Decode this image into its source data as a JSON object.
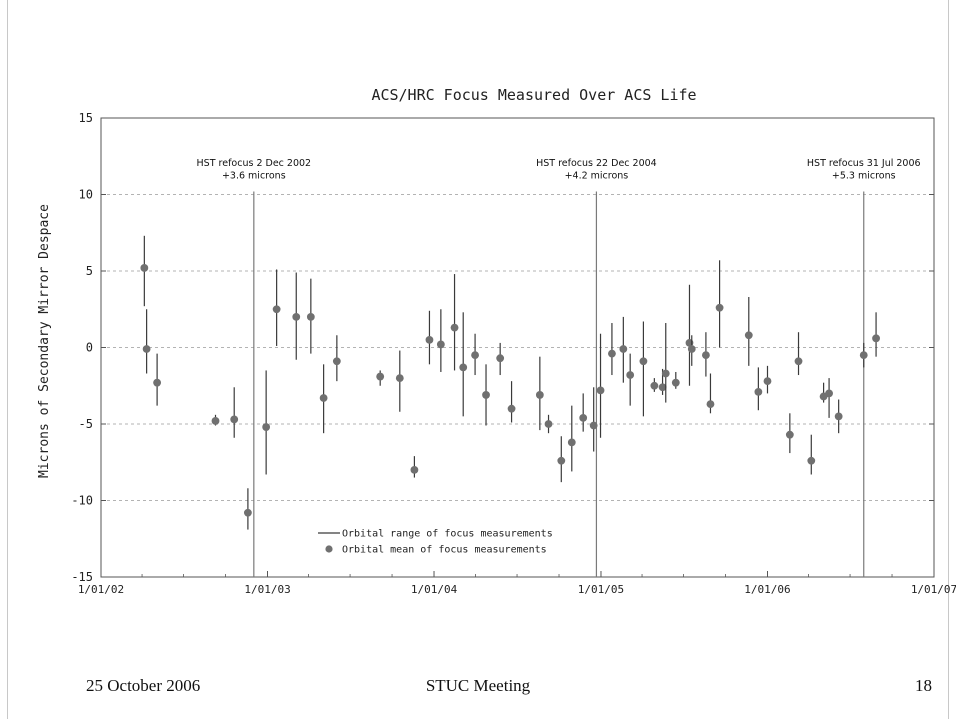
{
  "footer": {
    "date": "25 October 2006",
    "meeting": "STUC Meeting",
    "page": "18"
  },
  "colors": {
    "marker": "#707070",
    "errorbar": "#3a3a3a",
    "grid": "#9a9a9a",
    "axis": "#555555",
    "refocus_line": "#7a7a7a"
  },
  "chart_data": {
    "type": "scatter",
    "title": "ACS/HRC Focus Measured Over ACS Life",
    "xlabel": "",
    "ylabel": "Microns of Secondary Mirror Despace",
    "xlim": [
      "2002-01-01",
      "2007-01-01"
    ],
    "ylim": [
      -15,
      15
    ],
    "x_ticks": [
      "1/01/02",
      "1/01/03",
      "1/01/04",
      "1/01/05",
      "1/01/06",
      "1/01/07"
    ],
    "x_tick_dates": [
      "2002-01-01",
      "2003-01-01",
      "2004-01-01",
      "2005-01-01",
      "2006-01-01",
      "2007-01-01"
    ],
    "y_ticks": [
      15,
      10,
      5,
      0,
      -5,
      -10,
      -15
    ],
    "grid": "horizontal dashed",
    "legend": {
      "placement": "lower-center",
      "entries": [
        "Orbital range of focus measurements",
        "Orbital mean of focus measurements"
      ]
    },
    "refocus_events": [
      {
        "date": "2002-12-02",
        "label_line1": "HST refocus 2 Dec 2002",
        "label_line2": "+3.6 microns"
      },
      {
        "date": "2004-12-22",
        "label_line1": "HST refocus 22 Dec 2004",
        "label_line2": "+4.2 microns"
      },
      {
        "date": "2006-07-31",
        "label_line1": "HST refocus 31 Jul 2006",
        "label_line2": "+5.3 microns"
      }
    ],
    "series": [
      {
        "points": [
          {
            "date": "2002-04-06",
            "mean": 5.2,
            "low": 2.7,
            "high": 7.3
          },
          {
            "date": "2002-04-11",
            "mean": -0.1,
            "low": -1.7,
            "high": 2.5
          },
          {
            "date": "2002-05-04",
            "mean": -2.3,
            "low": -3.8,
            "high": -0.4
          },
          {
            "date": "2002-09-09",
            "mean": -4.8,
            "low": -5.1,
            "high": -4.4
          },
          {
            "date": "2002-10-20",
            "mean": -4.7,
            "low": -5.9,
            "high": -2.6
          },
          {
            "date": "2002-11-19",
            "mean": -10.8,
            "low": -11.9,
            "high": -9.2
          },
          {
            "date": "2002-12-29",
            "mean": -5.2,
            "low": -8.3,
            "high": -1.5
          },
          {
            "date": "2003-01-21",
            "mean": 2.5,
            "low": 0.1,
            "high": 5.1
          },
          {
            "date": "2003-03-05",
            "mean": 2.0,
            "low": -0.8,
            "high": 4.9
          },
          {
            "date": "2003-04-06",
            "mean": 2.0,
            "low": -0.4,
            "high": 4.5
          },
          {
            "date": "2003-05-04",
            "mean": -3.3,
            "low": -5.6,
            "high": -1.1
          },
          {
            "date": "2003-06-02",
            "mean": -0.9,
            "low": -2.2,
            "high": 0.8
          },
          {
            "date": "2003-09-05",
            "mean": -1.9,
            "low": -2.5,
            "high": -1.5
          },
          {
            "date": "2003-10-18",
            "mean": -2.0,
            "low": -4.2,
            "high": -0.2
          },
          {
            "date": "2003-11-19",
            "mean": -8.0,
            "low": -8.5,
            "high": -7.1
          },
          {
            "date": "2003-12-22",
            "mean": 0.5,
            "low": -1.1,
            "high": 2.4
          },
          {
            "date": "2004-01-16",
            "mean": 0.2,
            "low": -1.6,
            "high": 2.5
          },
          {
            "date": "2004-02-15",
            "mean": 1.3,
            "low": -1.5,
            "high": 4.8
          },
          {
            "date": "2004-03-05",
            "mean": -1.3,
            "low": -4.5,
            "high": 2.3
          },
          {
            "date": "2004-03-31",
            "mean": -0.5,
            "low": -1.8,
            "high": 0.9
          },
          {
            "date": "2004-04-24",
            "mean": -3.1,
            "low": -5.1,
            "high": -1.1
          },
          {
            "date": "2004-05-25",
            "mean": -0.7,
            "low": -1.8,
            "high": 0.3
          },
          {
            "date": "2004-06-19",
            "mean": -4.0,
            "low": -4.9,
            "high": -2.2
          },
          {
            "date": "2004-08-20",
            "mean": -3.1,
            "low": -5.4,
            "high": -0.6
          },
          {
            "date": "2004-09-08",
            "mean": -5.0,
            "low": -5.6,
            "high": -4.4
          },
          {
            "date": "2004-10-06",
            "mean": -7.4,
            "low": -8.8,
            "high": -5.8
          },
          {
            "date": "2004-10-29",
            "mean": -6.2,
            "low": -8.1,
            "high": -3.8
          },
          {
            "date": "2004-11-23",
            "mean": -4.6,
            "low": -5.5,
            "high": -3.0
          },
          {
            "date": "2004-12-16",
            "mean": -5.1,
            "low": -6.8,
            "high": -2.6
          },
          {
            "date": "2004-12-31",
            "mean": -2.8,
            "low": -5.9,
            "high": 0.9
          },
          {
            "date": "2005-01-25",
            "mean": -0.4,
            "low": -1.8,
            "high": 1.6
          },
          {
            "date": "2005-02-19",
            "mean": -0.1,
            "low": -2.3,
            "high": 2.0
          },
          {
            "date": "2005-03-06",
            "mean": -1.8,
            "low": -3.8,
            "high": -0.4
          },
          {
            "date": "2005-04-04",
            "mean": -0.9,
            "low": -4.5,
            "high": 1.7
          },
          {
            "date": "2005-04-28",
            "mean": -2.5,
            "low": -2.9,
            "high": -2.0
          },
          {
            "date": "2005-05-16",
            "mean": -2.6,
            "low": -3.1,
            "high": -1.4
          },
          {
            "date": "2005-05-23",
            "mean": -1.7,
            "low": -3.6,
            "high": 1.6
          },
          {
            "date": "2005-06-14",
            "mean": -2.3,
            "low": -2.7,
            "high": -1.6
          },
          {
            "date": "2005-07-14",
            "mean": 0.3,
            "low": -2.5,
            "high": 4.1
          },
          {
            "date": "2005-07-19",
            "mean": -0.1,
            "low": -1.2,
            "high": 0.8
          },
          {
            "date": "2005-08-19",
            "mean": -0.5,
            "low": -1.9,
            "high": 1.0
          },
          {
            "date": "2005-08-29",
            "mean": -3.7,
            "low": -4.3,
            "high": -1.7
          },
          {
            "date": "2005-09-18",
            "mean": 2.6,
            "low": 0.0,
            "high": 5.7
          },
          {
            "date": "2005-11-21",
            "mean": 0.8,
            "low": -1.2,
            "high": 3.3
          },
          {
            "date": "2005-12-12",
            "mean": -2.9,
            "low": -4.1,
            "high": -1.3
          },
          {
            "date": "2006-01-01",
            "mean": -2.2,
            "low": -3.0,
            "high": -1.2
          },
          {
            "date": "2006-02-19",
            "mean": -5.7,
            "low": -6.9,
            "high": -4.3
          },
          {
            "date": "2006-03-10",
            "mean": -0.9,
            "low": -1.8,
            "high": 1.0
          },
          {
            "date": "2006-04-07",
            "mean": -7.4,
            "low": -8.3,
            "high": -5.7
          },
          {
            "date": "2006-05-04",
            "mean": -3.2,
            "low": -3.6,
            "high": -2.3
          },
          {
            "date": "2006-05-16",
            "mean": -3.0,
            "low": -4.6,
            "high": -2.0
          },
          {
            "date": "2006-06-06",
            "mean": -4.5,
            "low": -5.6,
            "high": -3.4
          },
          {
            "date": "2006-07-31",
            "mean": -0.5,
            "low": -1.3,
            "high": 0.3
          },
          {
            "date": "2006-08-27",
            "mean": 0.6,
            "low": -0.6,
            "high": 2.3
          }
        ]
      }
    ]
  }
}
